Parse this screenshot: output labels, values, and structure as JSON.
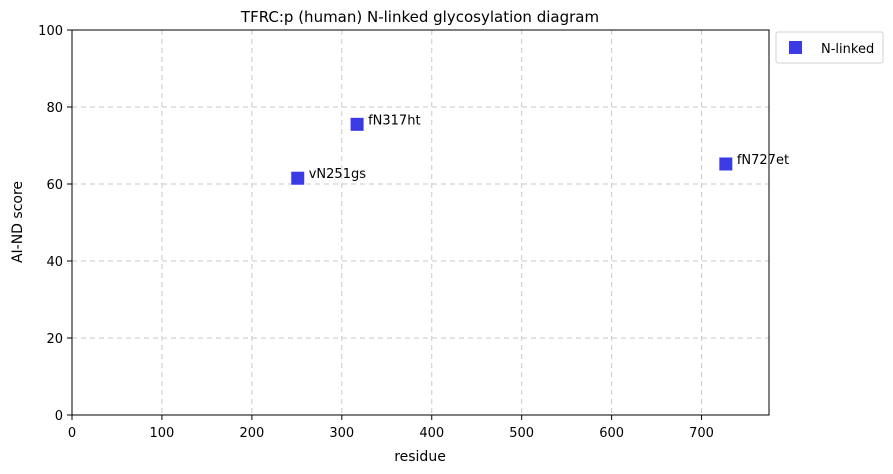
{
  "chart_data": {
    "type": "scatter",
    "title": "TFRC:p (human) N-linked glycosylation diagram",
    "xlabel": "residue",
    "ylabel": "AI-ND score",
    "xlim": [
      0,
      775
    ],
    "ylim": [
      0,
      100
    ],
    "xticks": [
      0,
      100,
      200,
      300,
      400,
      500,
      600,
      700
    ],
    "yticks": [
      0,
      20,
      40,
      60,
      80,
      100
    ],
    "grid": true,
    "legend_position": "outside-top-right",
    "series": [
      {
        "name": "N-linked",
        "color": "#3b3be6",
        "marker": "square",
        "points": [
          {
            "x": 251,
            "y": 61.5,
            "label": "vN251gs"
          },
          {
            "x": 317,
            "y": 75.5,
            "label": "fN317ht"
          },
          {
            "x": 727,
            "y": 65.2,
            "label": "fN727et"
          }
        ]
      }
    ]
  }
}
